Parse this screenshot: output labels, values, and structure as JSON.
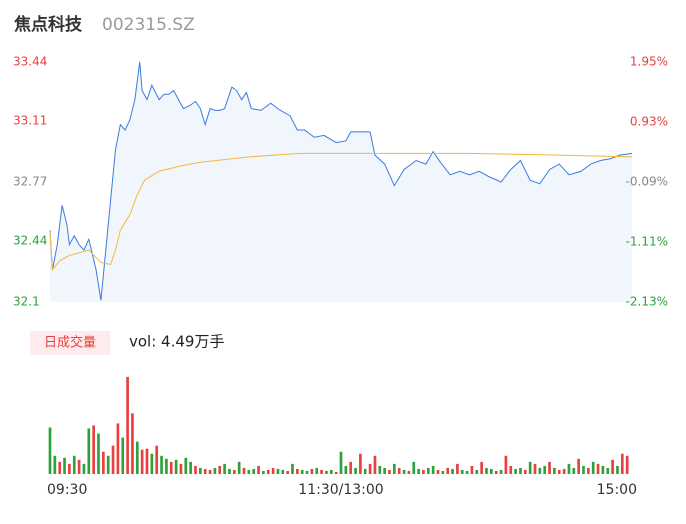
{
  "chart_data": {
    "type": "intraday",
    "title": "焦点科技",
    "subtitle": "002315.SZ",
    "volume_button": "日成交量",
    "volume_label": "vol: 4.49万手",
    "xlim": [
      0,
      240
    ],
    "xticks": [
      {
        "value": 0,
        "label": "09:30"
      },
      {
        "value": 120,
        "label": "11:30/13:00"
      },
      {
        "value": 240,
        "label": "15:00"
      }
    ],
    "ylim": [
      32.1,
      33.44
    ],
    "yticks": [
      33.44,
      33.11,
      32.77,
      32.44,
      32.1
    ],
    "ytick_colors": [
      "#e8403f",
      "#e8403f",
      "#888888",
      "#2ba33a",
      "#2ba33a"
    ],
    "y2lim": [
      -2.13,
      1.95
    ],
    "y2ticks": [
      {
        "value": 1.95,
        "label": "1.95%"
      },
      {
        "value": 0.93,
        "label": "0.93%"
      },
      {
        "value": -0.09,
        "label": "-0.09%"
      },
      {
        "value": -1.11,
        "label": "-1.11%"
      },
      {
        "value": -2.13,
        "label": "-2.13%"
      }
    ],
    "price": {
      "color": "#3b7be0",
      "fill": "#f1f5fc",
      "x": [
        0,
        1,
        3,
        5,
        7,
        8,
        10,
        12,
        14,
        16,
        19,
        21,
        23,
        25,
        27,
        29,
        31,
        33,
        35,
        37,
        38,
        40,
        42,
        45,
        47,
        49,
        51,
        53,
        55,
        58,
        60,
        62,
        64,
        66,
        68,
        70,
        72,
        75,
        77,
        79,
        81,
        83,
        87,
        91,
        95,
        99,
        102,
        105,
        109,
        113,
        118,
        122,
        124,
        128,
        132,
        134,
        138,
        142,
        146,
        151,
        155,
        158,
        161,
        165,
        169,
        173,
        177,
        181,
        186,
        190,
        194,
        198,
        202,
        206,
        210,
        214,
        219,
        223,
        227,
        231,
        235,
        240
      ],
      "values": [
        32.5,
        32.28,
        32.42,
        32.64,
        32.53,
        32.42,
        32.47,
        32.42,
        32.39,
        32.45,
        32.28,
        32.11,
        32.39,
        32.67,
        32.95,
        33.09,
        33.06,
        33.12,
        33.23,
        33.44,
        33.28,
        33.23,
        33.31,
        33.23,
        33.26,
        33.26,
        33.28,
        33.23,
        33.18,
        33.2,
        33.22,
        33.18,
        33.09,
        33.18,
        33.17,
        33.17,
        33.18,
        33.3,
        33.28,
        33.23,
        33.27,
        33.18,
        33.17,
        33.21,
        33.17,
        33.14,
        33.06,
        33.06,
        33.02,
        33.03,
        32.99,
        33.0,
        33.05,
        33.05,
        33.05,
        32.92,
        32.87,
        32.75,
        32.84,
        32.89,
        32.87,
        32.94,
        32.88,
        32.81,
        32.83,
        32.81,
        32.83,
        32.8,
        32.77,
        32.84,
        32.89,
        32.78,
        32.76,
        32.84,
        32.87,
        32.81,
        32.83,
        32.87,
        32.89,
        32.9,
        32.92,
        32.93
      ]
    },
    "average": {
      "color": "#f5b83c",
      "x": [
        0,
        1,
        4,
        8,
        16,
        21,
        25,
        27,
        29,
        33,
        36,
        39,
        45,
        54,
        62,
        82,
        103,
        124,
        173,
        210,
        240
      ],
      "values": [
        32.49,
        32.28,
        32.33,
        32.36,
        32.39,
        32.32,
        32.31,
        32.39,
        32.5,
        32.59,
        32.7,
        32.78,
        32.83,
        32.86,
        32.88,
        32.91,
        32.93,
        32.93,
        32.93,
        32.92,
        32.91
      ]
    },
    "volume": {
      "ylim": [
        0,
        1550
      ],
      "up_color": "#e8403f",
      "down_color": "#2ba33a",
      "x": [
        0,
        2,
        4,
        6,
        8,
        10,
        12,
        14,
        16,
        18,
        20,
        22,
        24,
        26,
        28,
        30,
        32,
        34,
        36,
        38,
        40,
        42,
        44,
        46,
        48,
        50,
        52,
        54,
        56,
        58,
        60,
        62,
        64,
        66,
        68,
        70,
        72,
        74,
        76,
        78,
        80,
        82,
        84,
        86,
        88,
        90,
        92,
        94,
        96,
        98,
        100,
        102,
        104,
        106,
        108,
        110,
        112,
        114,
        116,
        118,
        120,
        122,
        124,
        126,
        128,
        130,
        132,
        134,
        136,
        138,
        140,
        142,
        144,
        146,
        148,
        150,
        152,
        154,
        156,
        158,
        160,
        162,
        164,
        166,
        168,
        170,
        172,
        174,
        176,
        178,
        180,
        182,
        184,
        186,
        188,
        190,
        192,
        194,
        196,
        198,
        200,
        202,
        204,
        206,
        208,
        210,
        212,
        214,
        216,
        218,
        220,
        222,
        224,
        226,
        228,
        230,
        232,
        234,
        236,
        238
      ],
      "values": [
        736,
        288,
        192,
        256,
        160,
        288,
        224,
        160,
        720,
        768,
        640,
        352,
        288,
        448,
        800,
        576,
        1536,
        960,
        512,
        384,
        400,
        320,
        448,
        288,
        240,
        192,
        224,
        160,
        256,
        192,
        128,
        96,
        80,
        64,
        96,
        128,
        160,
        80,
        64,
        192,
        96,
        64,
        80,
        128,
        48,
        64,
        96,
        80,
        64,
        48,
        160,
        80,
        64,
        48,
        80,
        96,
        64,
        48,
        64,
        32,
        352,
        128,
        192,
        96,
        320,
        80,
        160,
        288,
        128,
        96,
        64,
        160,
        96,
        64,
        48,
        192,
        80,
        64,
        96,
        128,
        64,
        48,
        96,
        80,
        160,
        64,
        48,
        128,
        64,
        192,
        96,
        80,
        48,
        64,
        288,
        128,
        80,
        96,
        64,
        192,
        160,
        96,
        128,
        192,
        96,
        64,
        80,
        160,
        96,
        240,
        128,
        96,
        192,
        160,
        128,
        96,
        224,
        128,
        320,
        288
      ],
      "direction": [
        -1,
        -1,
        1,
        -1,
        1,
        -1,
        1,
        -1,
        -1,
        1,
        -1,
        1,
        -1,
        1,
        1,
        -1,
        1,
        1,
        -1,
        1,
        1,
        -1,
        1,
        -1,
        -1,
        1,
        -1,
        1,
        -1,
        -1,
        1,
        -1,
        1,
        1,
        -1,
        1,
        -1,
        -1,
        1,
        -1,
        1,
        -1,
        -1,
        1,
        -1,
        1,
        1,
        -1,
        -1,
        1,
        -1,
        1,
        -1,
        -1,
        1,
        -1,
        1,
        -1,
        -1,
        1,
        -1,
        -1,
        1,
        -1,
        1,
        -1,
        1,
        1,
        -1,
        -1,
        1,
        -1,
        1,
        -1,
        1,
        -1,
        -1,
        1,
        -1,
        -1,
        1,
        -1,
        1,
        -1,
        1,
        -1,
        -1,
        1,
        -1,
        1,
        -1,
        -1,
        1,
        -1,
        1,
        1,
        -1,
        -1,
        1,
        -1,
        1,
        -1,
        -1,
        1,
        -1,
        1,
        1,
        -1,
        -1,
        1,
        -1,
        1,
        -1,
        1,
        -1,
        -1,
        1,
        -1,
        1,
        1
      ]
    }
  }
}
